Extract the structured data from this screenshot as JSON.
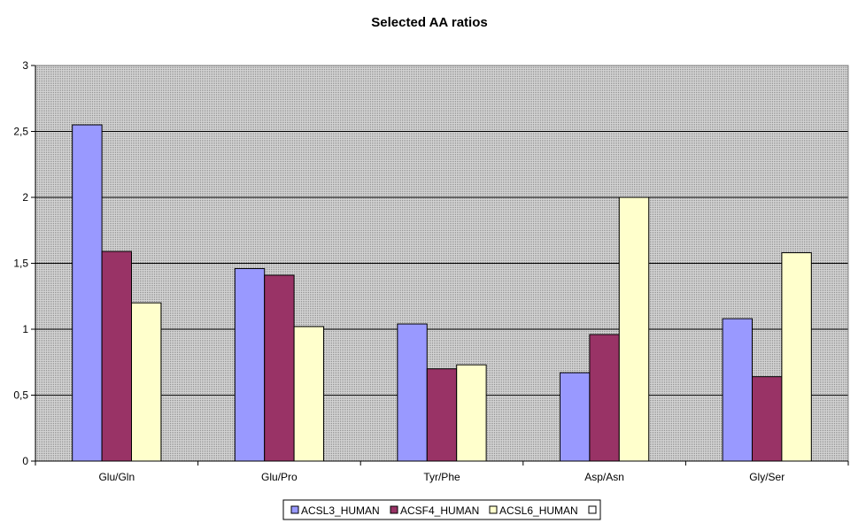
{
  "chart_data": {
    "type": "bar",
    "title": "Selected AA ratios",
    "xlabel": "",
    "ylabel": "",
    "categories": [
      "Glu/Gln",
      "Glu/Pro",
      "Tyr/Phe",
      "Asp/Asn",
      "Gly/Ser"
    ],
    "series": [
      {
        "name": "ACSL3_HUMAN",
        "color": "#9999ff",
        "values": [
          2.55,
          1.46,
          1.04,
          0.67,
          1.08
        ]
      },
      {
        "name": "ACSF4_HUMAN",
        "color": "#993366",
        "values": [
          1.59,
          1.41,
          0.7,
          0.96,
          0.64
        ]
      },
      {
        "name": "ACSL6_HUMAN",
        "color": "#ffffcc",
        "values": [
          1.2,
          1.02,
          0.73,
          2.0,
          1.58
        ]
      }
    ],
    "legend_extra_entry": "",
    "ylim": [
      0,
      3
    ],
    "yticks": [
      "0",
      "0,5",
      "1",
      "1,5",
      "2",
      "2,5",
      "3"
    ],
    "ytick_values": [
      0,
      0.5,
      1,
      1.5,
      2,
      2.5,
      3
    ],
    "grid": true,
    "legend_position": "bottom",
    "plot_background": "#c0c0c0"
  }
}
